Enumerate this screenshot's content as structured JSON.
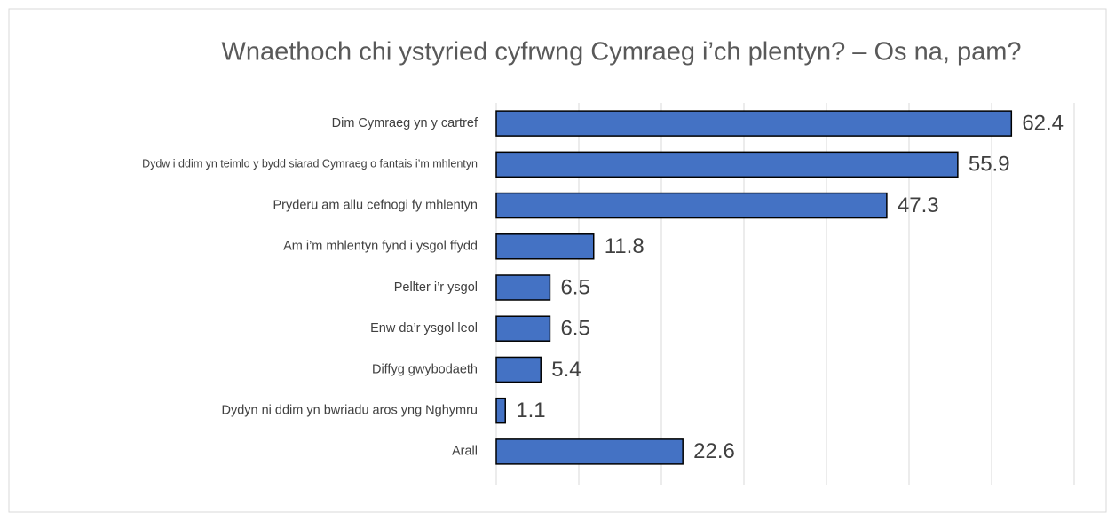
{
  "chart_data": {
    "type": "bar",
    "orientation": "horizontal",
    "title": "Wnaethoch chi ystyried cyfrwng Cymraeg i’ch plentyn? – Os na, pam?",
    "categories": [
      "Dim Cymraeg yn y cartref",
      "Dydw i ddim yn teimlo y bydd siarad Cymraeg o fantais i’m mhlentyn",
      "Pryderu am allu cefnogi fy mhlentyn",
      "Am i’m mhlentyn fynd i ysgol ffydd",
      "Pellter i’r ysgol",
      "Enw da’r ysgol leol",
      "Diffyg gwybodaeth",
      "Dydyn ni ddim yn bwriadu aros yng Nghymru",
      "Arall"
    ],
    "values": [
      62.4,
      55.9,
      47.3,
      11.8,
      6.5,
      6.5,
      5.4,
      1.1,
      22.6
    ],
    "color": "#4472c4",
    "xlim": [
      0,
      70
    ],
    "xticks": [
      0,
      10,
      20,
      30,
      40,
      50,
      60,
      70
    ],
    "grid": true
  }
}
